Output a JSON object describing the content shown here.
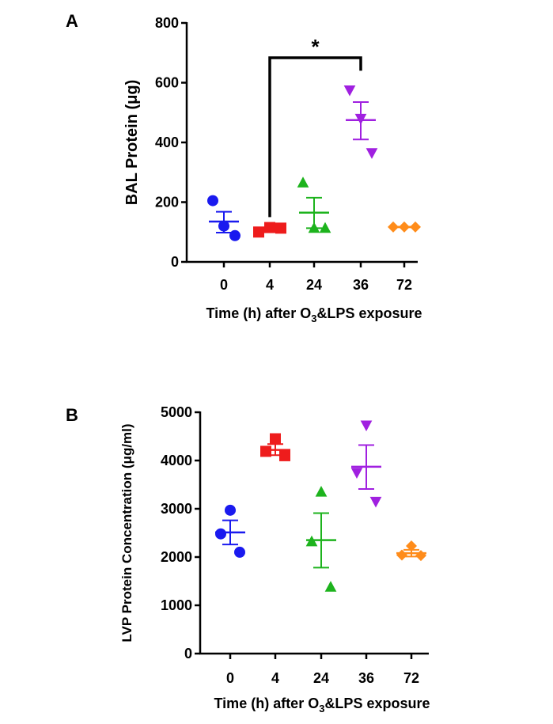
{
  "chart_data": [
    {
      "type": "scatter",
      "panel_label": "A",
      "title": "",
      "xlabel": "Time (h) after O",
      "xlabel_sub": "3",
      "xlabel_tail": "&LPS exposure",
      "ylabel": "BAL Protein (μg)",
      "categories": [
        "0",
        "4",
        "24",
        "36",
        "72"
      ],
      "yticks": [
        0,
        200,
        400,
        600,
        800
      ],
      "ylim": [
        0,
        800
      ],
      "significance": {
        "from": "4",
        "to": "36",
        "label": "*"
      },
      "series": [
        {
          "category": "0",
          "color": "#1a1aef",
          "marker": "circle",
          "points": [
            205,
            120,
            88
          ],
          "mean": 135,
          "sem_upper": 168,
          "sem_lower": 98
        },
        {
          "category": "4",
          "color": "#ee1c1c",
          "marker": "square",
          "points": [
            100,
            115,
            113
          ],
          "mean": 110,
          "sem_upper": 115,
          "sem_lower": 104
        },
        {
          "category": "24",
          "color": "#1db31d",
          "marker": "triangle-up",
          "points": [
            265,
            113,
            113
          ],
          "mean": 165,
          "sem_upper": 215,
          "sem_lower": 113
        },
        {
          "category": "36",
          "color": "#a020e0",
          "marker": "triangle-down",
          "points": [
            575,
            480,
            365
          ],
          "mean": 475,
          "sem_upper": 535,
          "sem_lower": 410
        },
        {
          "category": "72",
          "color": "#ff8c1a",
          "marker": "diamond",
          "points": [
            117,
            117,
            117
          ],
          "mean": 117,
          "sem_upper": 118,
          "sem_lower": 116
        }
      ]
    },
    {
      "type": "scatter",
      "panel_label": "B",
      "title": "",
      "xlabel": "Time (h) after O",
      "xlabel_sub": "3",
      "xlabel_tail": "&LPS exposure",
      "ylabel": "LVP Protein Concentration (μg/ml)",
      "categories": [
        "0",
        "4",
        "24",
        "36",
        "72"
      ],
      "yticks": [
        0,
        1000,
        2000,
        3000,
        4000,
        5000
      ],
      "ylim": [
        0,
        5000
      ],
      "series": [
        {
          "category": "0",
          "color": "#1a1aef",
          "marker": "circle",
          "points": [
            2970,
            2480,
            2100
          ],
          "mean": 2510,
          "sem_upper": 2760,
          "sem_lower": 2260
        },
        {
          "category": "4",
          "color": "#ee1c1c",
          "marker": "square",
          "points": [
            4450,
            4190,
            4100
          ],
          "mean": 4220,
          "sem_upper": 4340,
          "sem_lower": 4110
        },
        {
          "category": "24",
          "color": "#1db31d",
          "marker": "triangle-up",
          "points": [
            3350,
            2320,
            1380
          ],
          "mean": 2350,
          "sem_upper": 2910,
          "sem_lower": 1780
        },
        {
          "category": "36",
          "color": "#a020e0",
          "marker": "triangle-down",
          "points": [
            4730,
            3750,
            3150
          ],
          "mean": 3870,
          "sem_upper": 4320,
          "sem_lower": 3410
        },
        {
          "category": "72",
          "color": "#ff8c1a",
          "marker": "diamond",
          "points": [
            2230,
            2040,
            2030
          ],
          "mean": 2080,
          "sem_upper": 2150,
          "sem_lower": 2010
        }
      ]
    }
  ]
}
